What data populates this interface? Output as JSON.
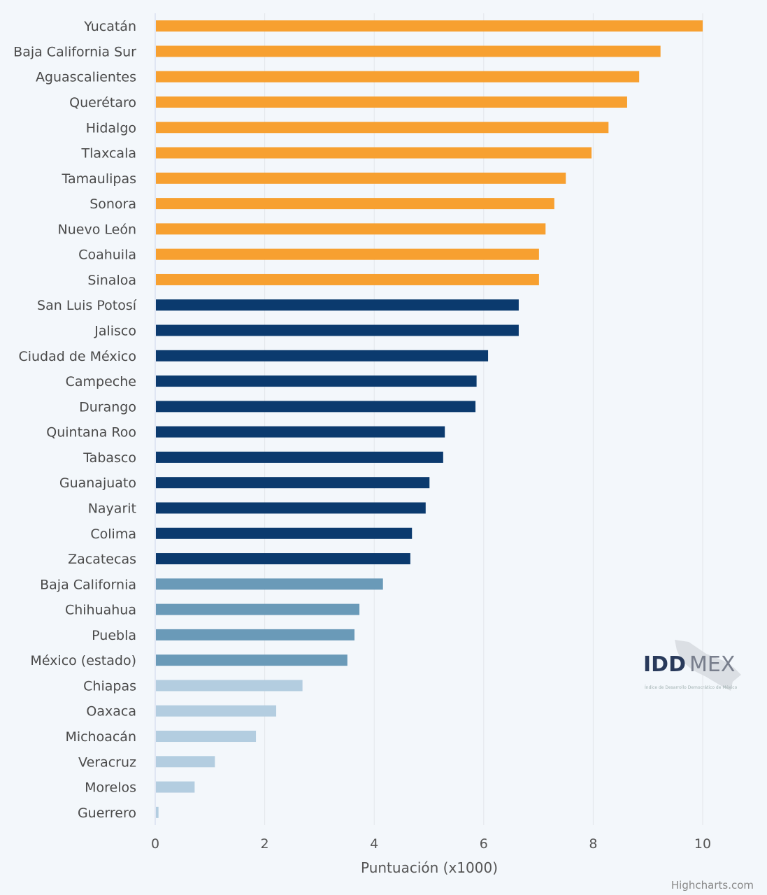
{
  "chart_data": {
    "type": "bar",
    "orientation": "horizontal",
    "categories": [
      "Yucatán",
      "Baja California Sur",
      "Aguascalientes",
      "Querétaro",
      "Hidalgo",
      "Tlaxcala",
      "Tamaulipas",
      "Sonora",
      "Nuevo León",
      "Coahuila",
      "Sinaloa",
      "San Luis Potosí",
      "Jalisco",
      "Ciudad de México",
      "Campeche",
      "Durango",
      "Quintana Roo",
      "Tabasco",
      "Guanajuato",
      "Nayarit",
      "Colima",
      "Zacatecas",
      "Baja California",
      "Chihuahua",
      "Puebla",
      "México (estado)",
      "Chiapas",
      "Oaxaca",
      "Michoacán",
      "Veracruz",
      "Morelos",
      "Guerrero"
    ],
    "values": [
      10.0,
      9.23,
      8.84,
      8.62,
      8.28,
      7.97,
      7.5,
      7.29,
      7.13,
      7.01,
      7.01,
      6.64,
      6.64,
      6.08,
      5.87,
      5.85,
      5.29,
      5.26,
      5.01,
      4.94,
      4.69,
      4.66,
      4.16,
      3.73,
      3.64,
      3.51,
      2.69,
      2.21,
      1.84,
      1.09,
      0.72,
      0.06
    ],
    "bar_colors": [
      "#f7a030",
      "#f7a030",
      "#f7a030",
      "#f7a030",
      "#f7a030",
      "#f7a030",
      "#f7a030",
      "#f7a030",
      "#f7a030",
      "#f7a030",
      "#f7a030",
      "#0b3a6e",
      "#0b3a6e",
      "#0b3a6e",
      "#0b3a6e",
      "#0b3a6e",
      "#0b3a6e",
      "#0b3a6e",
      "#0b3a6e",
      "#0b3a6e",
      "#0b3a6e",
      "#0b3a6e",
      "#6a9ab8",
      "#6a9ab8",
      "#6a9ab8",
      "#6a9ab8",
      "#b3cde0",
      "#b3cde0",
      "#b3cde0",
      "#b3cde0",
      "#b3cde0",
      "#b3cde0"
    ],
    "xlabel": "Puntuación (x1000)",
    "xlim": [
      0,
      10
    ],
    "xticks": [
      "0",
      "2",
      "4",
      "6",
      "8",
      "10"
    ],
    "grid": true,
    "legend": "none"
  },
  "watermark": {
    "logo_bold": "IDD",
    "logo_light": "MEX",
    "logo_subtitle": "Índice de Desarrollo Democrático de México"
  },
  "credits": "Highcharts.com"
}
